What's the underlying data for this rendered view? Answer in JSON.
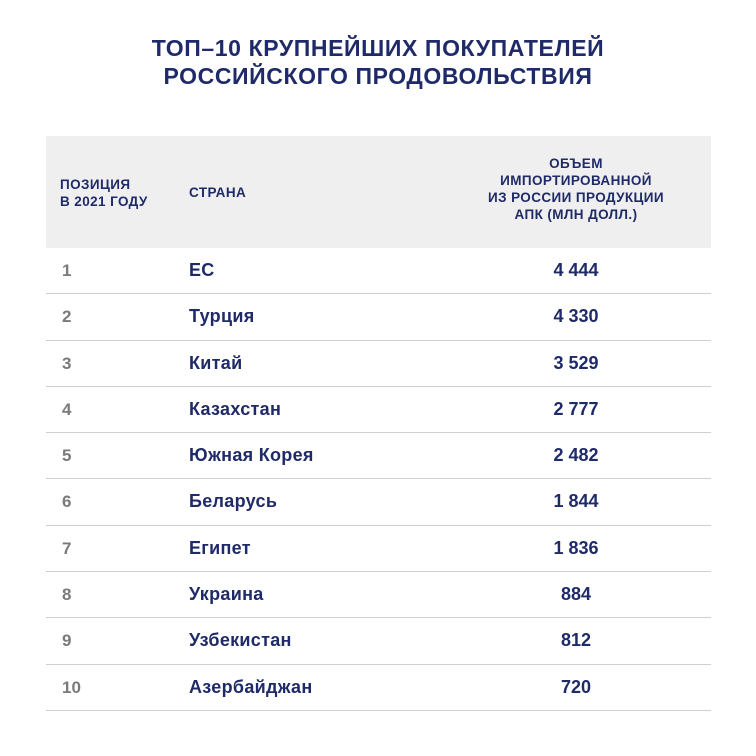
{
  "title_line1": "ТОП–10 КРУПНЕЙШИХ ПОКУПАТЕЛЕЙ",
  "title_line2": "РОССИЙСКОГО ПРОДОВОЛЬСТВИЯ",
  "headers": {
    "position_line1": "ПОЗИЦИЯ",
    "position_line2": "В 2021 ГОДУ",
    "country": "СТРАНА",
    "volume_line1": "ОБЪЕМ",
    "volume_line2": "ИМПОРТИРОВАННОЙ",
    "volume_line3": "ИЗ РОССИИ ПРОДУКЦИИ",
    "volume_line4": "АПК (МЛН ДОЛЛ.)"
  },
  "colors": {
    "accent": "#1f2a68",
    "header_bg": "#efefef",
    "position_text": "#7a7a7a",
    "divider": "#cfcfcf"
  },
  "chart_data": {
    "type": "table",
    "title": "ТОП–10 КРУПНЕЙШИХ ПОКУПАТЕЛЕЙ РОССИЙСКОГО ПРОДОВОЛЬСТВИЯ",
    "columns": [
      "ПОЗИЦИЯ В 2021 ГОДУ",
      "СТРАНА",
      "ОБЪЕМ ИМПОРТИРОВАННОЙ ИЗ РОССИИ ПРОДУКЦИИ АПК (МЛН ДОЛЛ.)"
    ],
    "rows": [
      {
        "position": "1",
        "country": "ЕС",
        "value": "4 444"
      },
      {
        "position": "2",
        "country": "Турция",
        "value": "4 330"
      },
      {
        "position": "3",
        "country": "Китай",
        "value": "3 529"
      },
      {
        "position": "4",
        "country": "Казахстан",
        "value": "2 777"
      },
      {
        "position": "5",
        "country": "Южная Корея",
        "value": "2 482"
      },
      {
        "position": "6",
        "country": "Беларусь",
        "value": "1 844"
      },
      {
        "position": "7",
        "country": "Египет",
        "value": "1 836"
      },
      {
        "position": "8",
        "country": "Украина",
        "value": "884"
      },
      {
        "position": "9",
        "country": "Узбекистан",
        "value": "812"
      },
      {
        "position": "10",
        "country": "Азербайджан",
        "value": "720"
      }
    ]
  }
}
